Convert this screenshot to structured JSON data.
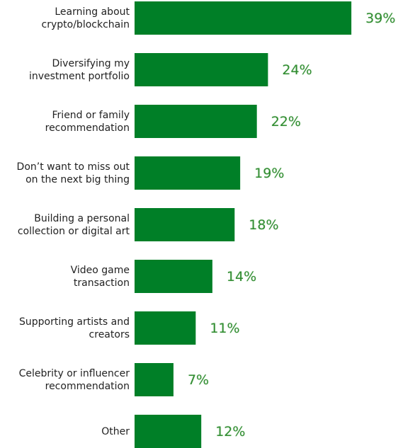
{
  "chart_data": {
    "type": "bar",
    "orientation": "horizontal",
    "categories": [
      "Learning about\ncrypto/blockchain",
      "Diversifying my\ninvestment portfolio",
      "Friend or family\nrecommendation",
      "Don’t want to miss out\non the next big thing",
      "Building a personal\ncollection or digital art",
      "Video game\ntransaction",
      "Supporting artists and\ncreators",
      "Celebrity or influencer\nrecommendation",
      "Other"
    ],
    "values": [
      39,
      24,
      22,
      19,
      18,
      14,
      11,
      7,
      12
    ],
    "value_labels": [
      "39%",
      "24%",
      "22%",
      "19%",
      "18%",
      "14%",
      "11%",
      "7%",
      "12%"
    ],
    "color": "#007f27"
  }
}
